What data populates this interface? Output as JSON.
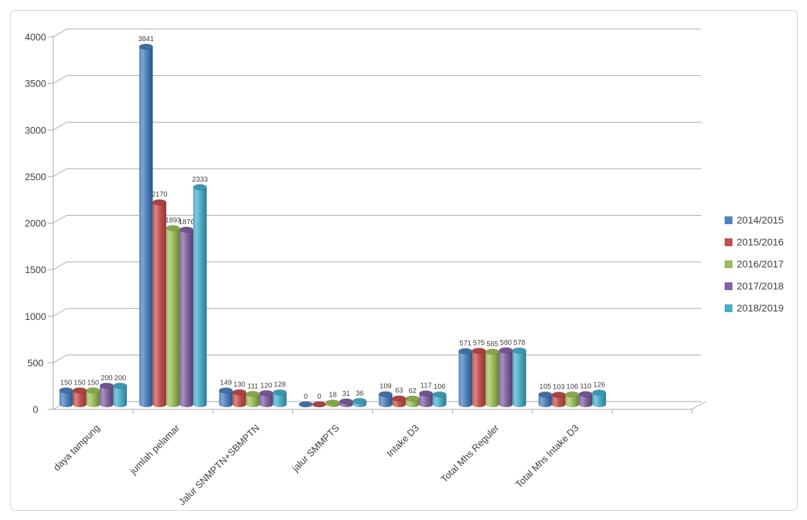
{
  "chart_data": {
    "type": "bar",
    "style": "3d-cylinder",
    "title": "",
    "xlabel": "",
    "ylabel": "",
    "categories": [
      "daya tampung",
      "jumlah pelamar",
      "Jalur SNMPTN+SBMPTN",
      "jalur SMMPTS",
      "Intake D3",
      "Total Mhs Reguler",
      "Total Mhs Intake D3"
    ],
    "empty_trailing_slots": 1,
    "series": [
      {
        "name": "2014/2015",
        "color": "#4F81BD",
        "color_light": "#82A7D3",
        "color_dark": "#2E5380",
        "color_top": "#406EA4",
        "values": [
          150,
          3841,
          149,
          0,
          109,
          571,
          105
        ]
      },
      {
        "name": "2015/2016",
        "color": "#C0504D",
        "color_light": "#D98884",
        "color_dark": "#8C3A38",
        "color_top": "#A94340",
        "values": [
          150,
          2170,
          130,
          0,
          63,
          575,
          103
        ]
      },
      {
        "name": "2016/2017",
        "color": "#9BBB59",
        "color_light": "#BCD38D",
        "color_dark": "#66803A",
        "color_top": "#87A64A",
        "values": [
          150,
          1893,
          111,
          18,
          62,
          565,
          106
        ]
      },
      {
        "name": "2017/2018",
        "color": "#8064A2",
        "color_light": "#A893BE",
        "color_dark": "#54416C",
        "color_top": "#6F5491",
        "values": [
          200,
          1876,
          120,
          31,
          117,
          580,
          110
        ]
      },
      {
        "name": "2018/2019",
        "color": "#4BACC6",
        "color_light": "#83C6D8",
        "color_dark": "#2E7A8F",
        "color_top": "#3C97B1",
        "values": [
          200,
          2333,
          128,
          36,
          106,
          578,
          126
        ]
      }
    ],
    "ylim": [
      0,
      4000
    ],
    "yticks": [
      0,
      500,
      1000,
      1500,
      2000,
      2500,
      3000,
      3500,
      4000
    ],
    "grid": true,
    "legend_position": "right",
    "value_labels": true,
    "colors": {
      "gridline": "#a6a6a6",
      "axis": "#a6a6a6",
      "tick_label": "#3f3f3f",
      "value_label": "#404040",
      "category_label": "#3f3f3f",
      "frame_border": "#d2d2d2",
      "background": "#ffffff"
    }
  }
}
